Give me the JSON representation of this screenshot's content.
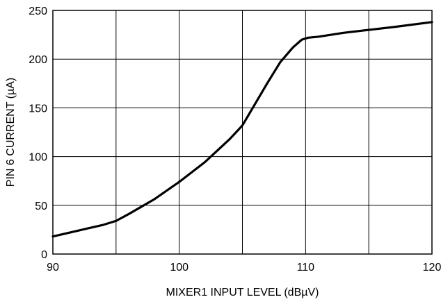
{
  "chart_data": {
    "type": "line",
    "title": "",
    "xlabel": "MIXER1 INPUT LEVEL (dBµV)",
    "ylabel": "PIN 6 CURRENT (µA)",
    "xlim": [
      90,
      120
    ],
    "ylim": [
      0,
      250
    ],
    "grid": true,
    "x_ticks": [
      90,
      95,
      100,
      105,
      110,
      115,
      120
    ],
    "x_tick_labels": [
      "90",
      "",
      "100",
      "",
      "110",
      "",
      "120"
    ],
    "y_ticks": [
      0,
      50,
      100,
      150,
      200,
      250
    ],
    "y_tick_labels": [
      "0",
      "50",
      "100",
      "150",
      "200",
      "250"
    ],
    "series": [
      {
        "x": [
          90,
          92,
          94,
          95,
          96,
          98,
          100,
          102,
          104,
          105,
          106,
          107,
          108,
          109,
          109.7,
          110.2,
          111,
          113,
          115,
          117,
          120
        ],
        "y": [
          18,
          24,
          30,
          34,
          41,
          56,
          74,
          94,
          118,
          132,
          154,
          176,
          197,
          212,
          220,
          222,
          223,
          227,
          230,
          233,
          238
        ]
      }
    ]
  }
}
